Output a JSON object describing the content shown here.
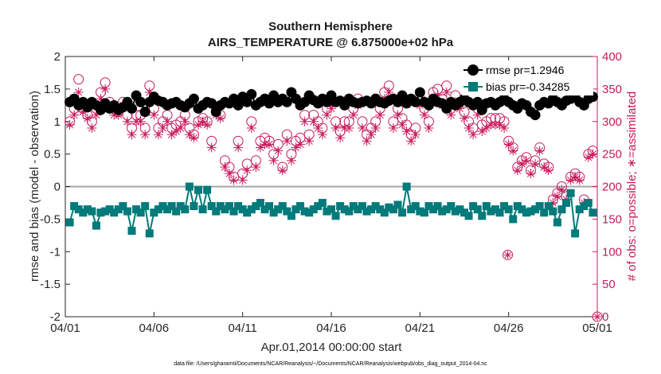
{
  "chart_data": {
    "type": "line",
    "title": "Southern Hemisphere",
    "subtitle": "AIRS_TEMPERATURE @ 6.875000e+02 hPa",
    "xlabel": "Apr.01,2014 00:00:00 start",
    "ylabel": "rmse and bias (model - observation)",
    "ylabel_right": "# of obs: o=possible; ∗=assimilated",
    "footnote": "data file: /Users/gharamti/Documents/NCAR/Reanalysis/~/Documents/NCAR/Reanalysis/webpub/obs_diag_output_2014-04.nc",
    "xlim": [
      0,
      30
    ],
    "ylim": [
      -2,
      2
    ],
    "ylim_right": [
      0,
      400
    ],
    "x_ticks": [
      {
        "value": 0,
        "label": "04/01"
      },
      {
        "value": 5,
        "label": "04/06"
      },
      {
        "value": 10,
        "label": "04/11"
      },
      {
        "value": 15,
        "label": "04/16"
      },
      {
        "value": 20,
        "label": "04/21"
      },
      {
        "value": 25,
        "label": "04/26"
      },
      {
        "value": 30,
        "label": "05/01"
      }
    ],
    "y_ticks": [
      {
        "value": 2,
        "label": "2"
      },
      {
        "value": 1.5,
        "label": "1.5"
      },
      {
        "value": 1,
        "label": "1"
      },
      {
        "value": 0.5,
        "label": "0.5"
      },
      {
        "value": 0,
        "label": "0"
      },
      {
        "value": -0.5,
        "label": "-0.5"
      },
      {
        "value": -1,
        "label": "-1"
      },
      {
        "value": -1.5,
        "label": "-1.5"
      },
      {
        "value": -2,
        "label": "-2"
      }
    ],
    "y_ticks_right": [
      {
        "value": 400,
        "label": "400"
      },
      {
        "value": 350,
        "label": "350"
      },
      {
        "value": 300,
        "label": "300"
      },
      {
        "value": 250,
        "label": "250"
      },
      {
        "value": 200,
        "label": "200"
      },
      {
        "value": 150,
        "label": "150"
      },
      {
        "value": 100,
        "label": "100"
      },
      {
        "value": 50,
        "label": "50"
      },
      {
        "value": 0,
        "label": "0"
      }
    ],
    "legend": {
      "position": "top-right",
      "entries": [
        {
          "label": "rmse pr=1.2946",
          "series": "rmse"
        },
        {
          "label": "bias pr=-0.34285",
          "series": "bias"
        }
      ]
    },
    "colors": {
      "rmse": "#000000",
      "bias": "#007a7a",
      "obs": "#c8195a",
      "zero_line": "#a6a6a6"
    },
    "x": [
      0.25,
      0.5,
      0.75,
      1,
      1.25,
      1.5,
      1.75,
      2,
      2.25,
      2.5,
      2.75,
      3,
      3.25,
      3.5,
      3.75,
      4,
      4.25,
      4.5,
      4.75,
      5,
      5.25,
      5.5,
      5.75,
      6,
      6.25,
      6.5,
      6.75,
      7,
      7.25,
      7.5,
      7.75,
      8,
      8.25,
      8.5,
      8.75,
      9,
      9.25,
      9.5,
      9.75,
      10,
      10.25,
      10.5,
      10.75,
      11,
      11.25,
      11.5,
      11.75,
      12,
      12.25,
      12.5,
      12.75,
      13,
      13.25,
      13.5,
      13.75,
      14,
      14.25,
      14.5,
      14.75,
      15,
      15.25,
      15.5,
      15.75,
      16,
      16.25,
      16.5,
      16.75,
      17,
      17.25,
      17.5,
      17.75,
      18,
      18.25,
      18.5,
      18.75,
      19,
      19.25,
      19.5,
      19.75,
      20,
      20.25,
      20.5,
      20.75,
      21,
      21.25,
      21.5,
      21.75,
      22,
      22.25,
      22.5,
      22.75,
      23,
      23.25,
      23.5,
      23.75,
      24,
      24.25,
      24.5,
      24.75,
      25,
      25.25,
      25.5,
      25.75,
      26,
      26.25,
      26.5,
      26.75,
      27,
      27.25,
      27.5,
      27.75,
      28,
      28.25,
      28.5,
      28.75,
      29,
      29.25,
      29.5,
      29.75
    ],
    "series": [
      {
        "name": "rmse",
        "axis": "left",
        "marker": "filled-circle",
        "values": [
          1.3,
          1.35,
          1.25,
          1.3,
          1.22,
          1.3,
          1.25,
          1.18,
          1.28,
          1.2,
          1.25,
          1.18,
          1.22,
          1.3,
          1.2,
          1.4,
          1.3,
          1.15,
          1.3,
          1.38,
          1.32,
          1.3,
          1.25,
          1.28,
          1.3,
          1.25,
          1.22,
          1.28,
          1.35,
          1.2,
          1.25,
          1.3,
          1.28,
          1.15,
          1.25,
          1.3,
          1.28,
          1.35,
          1.25,
          1.38,
          1.3,
          1.42,
          1.25,
          1.3,
          1.35,
          1.28,
          1.4,
          1.3,
          1.35,
          1.3,
          1.45,
          1.35,
          1.25,
          1.3,
          1.4,
          1.33,
          1.28,
          1.35,
          1.3,
          1.4,
          1.3,
          1.32,
          1.25,
          1.35,
          1.3,
          1.28,
          1.3,
          1.32,
          1.28,
          1.35,
          1.3,
          1.28,
          1.32,
          1.35,
          1.3,
          1.4,
          1.28,
          1.35,
          1.3,
          1.45,
          1.3,
          1.25,
          1.35,
          1.3,
          1.28,
          1.2,
          1.3,
          1.25,
          1.3,
          1.35,
          1.3,
          1.25,
          1.3,
          1.18,
          1.28,
          1.3,
          1.25,
          1.3,
          1.35,
          1.3,
          1.25,
          1.2,
          1.28,
          1.25,
          1.15,
          1.1,
          1.25,
          1.3,
          1.28,
          1.35,
          1.3,
          1.25,
          1.32,
          1.35,
          1.4,
          1.3,
          1.25,
          1.35,
          1.38
        ]
      },
      {
        "name": "bias",
        "axis": "left",
        "marker": "filled-square",
        "values": [
          -0.55,
          -0.3,
          -0.35,
          -0.4,
          -0.35,
          -0.38,
          -0.6,
          -0.4,
          -0.38,
          -0.35,
          -0.4,
          -0.35,
          -0.3,
          -0.38,
          -0.68,
          -0.35,
          -0.4,
          -0.3,
          -0.72,
          -0.4,
          -0.35,
          -0.3,
          -0.35,
          -0.3,
          -0.38,
          -0.3,
          -0.35,
          0,
          -0.3,
          -0.05,
          -0.35,
          -0.05,
          -0.3,
          -0.38,
          -0.3,
          -0.35,
          -0.3,
          -0.38,
          -0.3,
          -0.35,
          -0.4,
          -0.35,
          -0.3,
          -0.25,
          -0.35,
          -0.3,
          -0.4,
          -0.35,
          -0.3,
          -0.38,
          -0.45,
          -0.35,
          -0.3,
          -0.38,
          -0.4,
          -0.35,
          -0.3,
          -0.25,
          -0.38,
          -0.35,
          -0.45,
          -0.3,
          -0.35,
          -0.38,
          -0.3,
          -0.35,
          -0.3,
          -0.38,
          -0.35,
          -0.3,
          -0.35,
          -0.4,
          -0.32,
          -0.35,
          -0.28,
          -0.4,
          0,
          -0.35,
          -0.3,
          -0.38,
          -0.4,
          -0.3,
          -0.35,
          -0.3,
          -0.38,
          -0.35,
          -0.3,
          -0.38,
          -0.35,
          -0.4,
          -0.45,
          -0.3,
          -0.35,
          -0.45,
          -0.3,
          -0.38,
          -0.35,
          -0.4,
          -0.3,
          -0.35,
          -0.5,
          -0.3,
          -0.35,
          -0.4,
          -0.38,
          -0.35,
          -0.3,
          -0.4,
          -0.3,
          -0.38,
          -0.55,
          -0.35,
          -0.25,
          -0.1,
          -0.72,
          -0.35,
          -0.3,
          -0.25,
          -0.4
        ]
      },
      {
        "name": "obs_possible",
        "axis": "right",
        "marker": "open-circle",
        "values": [
          300,
          320,
          365,
          320,
          310,
          300,
          320,
          345,
          360,
          330,
          320,
          315,
          330,
          310,
          290,
          310,
          310,
          290,
          355,
          320,
          290,
          300,
          310,
          290,
          295,
          300,
          310,
          290,
          280,
          300,
          305,
          300,
          270,
          320,
          310,
          240,
          230,
          215,
          270,
          220,
          235,
          300,
          240,
          270,
          275,
          270,
          250,
          265,
          230,
          280,
          250,
          270,
          275,
          310,
          280,
          310,
          300,
          290,
          320,
          330,
          300,
          285,
          300,
          300,
          320,
          335,
          300,
          280,
          290,
          300,
          320,
          345,
          355,
          300,
          320,
          305,
          295,
          280,
          290,
          335,
          320,
          300,
          345,
          350,
          335,
          355,
          320,
          340,
          330,
          315,
          300,
          290,
          320,
          295,
          300,
          305,
          305,
          305,
          300,
          270,
          260,
          230,
          240,
          245,
          225,
          240,
          260,
          235,
          230,
          180,
          190,
          200,
          185,
          215,
          220,
          215,
          180,
          250,
          255
        ]
      },
      {
        "name": "obs_assimilated",
        "axis": "right",
        "marker": "asterisk",
        "values": [
          295,
          310,
          345,
          315,
          305,
          290,
          310,
          335,
          350,
          320,
          310,
          310,
          325,
          300,
          280,
          300,
          300,
          280,
          345,
          310,
          280,
          290,
          300,
          280,
          285,
          290,
          300,
          280,
          275,
          295,
          300,
          295,
          260,
          310,
          305,
          230,
          220,
          210,
          260,
          210,
          225,
          290,
          230,
          260,
          265,
          265,
          240,
          255,
          225,
          270,
          240,
          260,
          265,
          300,
          270,
          300,
          290,
          280,
          310,
          320,
          290,
          275,
          290,
          290,
          310,
          325,
          290,
          270,
          280,
          290,
          310,
          335,
          345,
          290,
          310,
          295,
          285,
          270,
          280,
          325,
          310,
          290,
          335,
          340,
          325,
          345,
          310,
          330,
          320,
          305,
          290,
          280,
          310,
          285,
          290,
          295,
          295,
          295,
          290,
          265,
          255,
          225,
          235,
          240,
          220,
          235,
          255,
          230,
          225,
          175,
          185,
          195,
          180,
          210,
          215,
          210,
          175,
          245,
          250
        ]
      }
    ],
    "outliers": [
      {
        "x": 24.95,
        "value": 95,
        "axis": "right",
        "marker": "circle-asterisk"
      },
      {
        "x": 30,
        "value": 0,
        "axis": "right",
        "marker": "circle-asterisk"
      }
    ]
  }
}
